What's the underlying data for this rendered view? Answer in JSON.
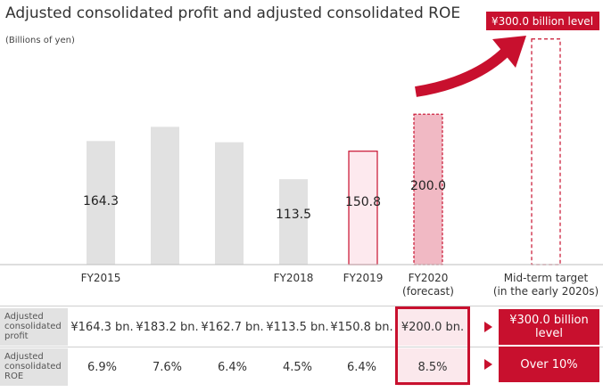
{
  "title": "Adjusted consolidated profit and adjusted consolidated ROE",
  "unit_label": "(Billions of yen)",
  "chart_data": {
    "type": "bar",
    "categories": [
      "FY2015",
      "",
      "",
      "FY2018",
      "FY2019",
      "FY2020\n(forecast)",
      "Mid-term target\n(in the early 2020s)"
    ],
    "values": [
      164.3,
      183.2,
      162.7,
      113.5,
      150.8,
      200.0,
      300.0
    ],
    "data_labels": [
      "164.3",
      "",
      "",
      "113.5",
      "150.8",
      "200.0",
      ""
    ],
    "target_label": "¥300.0 billion level",
    "ylim": [
      0,
      340
    ],
    "colors": {
      "actual": "#e1e1e1",
      "fy2019": "#fde9ee",
      "forecast": "#f1b9c4",
      "accent": "#c8102e"
    }
  },
  "table": {
    "rows": [
      {
        "label": "Adjusted consolidated profit",
        "label_lines": [
          "Adjusted",
          "consolidated",
          "profit"
        ],
        "cells": [
          "¥164.3 bn.",
          "¥183.2 bn.",
          "¥162.7 bn.",
          "¥113.5 bn.",
          "¥150.8 bn.",
          "¥200.0 bn."
        ],
        "target": "¥300.0 billion level",
        "target_lines": [
          "¥300.0 billion",
          "level"
        ]
      },
      {
        "label": "Adjusted consolidated ROE",
        "label_lines": [
          "Adjusted",
          "consolidated",
          "ROE"
        ],
        "cells": [
          "6.9%",
          "7.6%",
          "6.4%",
          "4.5%",
          "6.4%",
          "8.5%"
        ],
        "target": "Over 10%",
        "target_lines": [
          "Over 10%"
        ]
      }
    ]
  }
}
